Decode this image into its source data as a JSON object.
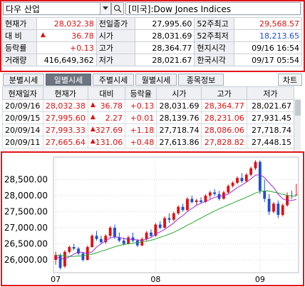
{
  "header": {
    "stock_select": "다우 산업",
    "index_label": "[미국]:Dow Jones Indices"
  },
  "quote": {
    "rows": [
      {
        "l1": "현재가",
        "v1": "28,032.38",
        "l2": "전일종가",
        "v2": "27,995.60",
        "l3": "52주최고",
        "v3": "29,568.57"
      },
      {
        "l1": "대 비",
        "v1": "36.78",
        "l2": "시가",
        "v2": "28,031.69",
        "l3": "52주최저",
        "v3": "18,213.65"
      },
      {
        "l1": "등락률",
        "v1": "+0.13",
        "l2": "고가",
        "v2": "28,364.77",
        "l3": "현지시각",
        "v3": "09/16 16:54"
      },
      {
        "l1": "거래량",
        "v1": "416,649,362",
        "l2": "저가",
        "v2": "28,021.67",
        "l3": "한국시각",
        "v3": "09/17 05:54"
      }
    ]
  },
  "tabs": [
    "분별시세",
    "일별시세",
    "주별시세",
    "월별시세",
    "종목정보"
  ],
  "chart_button": "차트",
  "history": {
    "headers": [
      "현재일자",
      "현재가",
      "대비",
      "등락율",
      "시가",
      "고가",
      "저가"
    ],
    "rows": [
      {
        "date": "20/09/16",
        "close": "28,032.38",
        "chg": "36.78",
        "pct": "+0.13",
        "open": "28,031.69",
        "high": "28,364.77",
        "low": "28,021.67"
      },
      {
        "date": "20/09/15",
        "close": "27,995.60",
        "chg": "2.27",
        "pct": "+0.01",
        "open": "28,139.76",
        "high": "28,231.06",
        "low": "27,931.45"
      },
      {
        "date": "20/09/14",
        "close": "27,993.33",
        "chg": "327.69",
        "pct": "+1.18",
        "open": "27,718.74",
        "high": "28,086.06",
        "low": "27,718.74"
      },
      {
        "date": "20/09/11",
        "close": "27,665.64",
        "chg": "131.06",
        "pct": "+0.48",
        "open": "27,613.86",
        "high": "27,828.82",
        "low": "27,448.15"
      }
    ]
  },
  "colors": {
    "up": "#e01010",
    "down": "#1a4fd8",
    "ma1": "#9a2bd8",
    "ma2": "#2aa830",
    "frame": "#e3141b"
  },
  "chart_data": {
    "type": "candlestick",
    "yticks": [
      "28,500.00",
      "28,000.00",
      "27,500.00",
      "27,000.00",
      "26,500.00",
      "26,000.00"
    ],
    "yvalues": [
      28500,
      28000,
      27500,
      27000,
      26500,
      26000
    ],
    "ylim": [
      25600,
      29200
    ],
    "xticks": [
      "07",
      "08",
      "09"
    ],
    "xtick_index": [
      0,
      22,
      45
    ],
    "candles": [
      [
        26000,
        26250,
        25850,
        26150
      ],
      [
        26150,
        26200,
        25700,
        25750
      ],
      [
        25800,
        26300,
        25750,
        26250
      ],
      [
        26250,
        26450,
        26200,
        26400
      ],
      [
        26400,
        26500,
        26300,
        26350
      ],
      [
        26350,
        26400,
        26150,
        26200
      ],
      [
        26200,
        26250,
        25950,
        26000
      ],
      [
        26000,
        26450,
        25980,
        26400
      ],
      [
        26400,
        26800,
        26380,
        26750
      ],
      [
        26750,
        26900,
        26600,
        26650
      ],
      [
        26650,
        26750,
        26500,
        26550
      ],
      [
        26550,
        26800,
        26500,
        26750
      ],
      [
        26750,
        27050,
        26700,
        27000
      ],
      [
        27000,
        27100,
        26650,
        26700
      ],
      [
        26700,
        26850,
        26550,
        26600
      ],
      [
        26600,
        26700,
        26450,
        26500
      ],
      [
        26500,
        26750,
        26480,
        26700
      ],
      [
        26700,
        26850,
        26550,
        26600
      ],
      [
        26600,
        26650,
        26400,
        26450
      ],
      [
        26450,
        26700,
        26420,
        26650
      ],
      [
        26650,
        26900,
        26600,
        26850
      ],
      [
        26850,
        26950,
        26700,
        26750
      ],
      [
        26750,
        27150,
        26720,
        27100
      ],
      [
        27100,
        27200,
        26950,
        27000
      ],
      [
        27000,
        27350,
        26980,
        27300
      ],
      [
        27300,
        27450,
        27150,
        27250
      ],
      [
        27250,
        27500,
        27200,
        27450
      ],
      [
        27450,
        27700,
        27400,
        27650
      ],
      [
        27650,
        27750,
        27500,
        27550
      ],
      [
        27550,
        27950,
        27520,
        27900
      ],
      [
        27900,
        28000,
        27750,
        27800
      ],
      [
        27800,
        27900,
        27700,
        27850
      ],
      [
        27850,
        27950,
        27750,
        27800
      ],
      [
        27800,
        28050,
        27780,
        28000
      ],
      [
        28000,
        28150,
        27900,
        28100
      ],
      [
        28100,
        28200,
        28000,
        28050
      ],
      [
        28050,
        28150,
        27850,
        27900
      ],
      [
        27900,
        28150,
        27880,
        28100
      ],
      [
        28100,
        28350,
        28050,
        28300
      ],
      [
        28300,
        28450,
        28250,
        28400
      ],
      [
        28400,
        28600,
        28350,
        28550
      ],
      [
        28550,
        28700,
        28400,
        28450
      ],
      [
        28450,
        28700,
        28420,
        28650
      ],
      [
        28650,
        28900,
        28600,
        28850
      ],
      [
        28850,
        29100,
        28800,
        29050
      ],
      [
        29050,
        29100,
        28050,
        28150
      ],
      [
        28150,
        28500,
        27800,
        27900
      ],
      [
        27900,
        28050,
        27400,
        27500
      ],
      [
        27500,
        27800,
        27450,
        27750
      ],
      [
        27750,
        27850,
        27300,
        27400
      ],
      [
        27400,
        27750,
        27350,
        27700
      ],
      [
        27700,
        28100,
        27650,
        28000
      ],
      [
        28000,
        28150,
        27900,
        27995
      ],
      [
        28031,
        28365,
        28021,
        28032
      ]
    ],
    "ma1": [
      26100,
      26050,
      26020,
      26100,
      26180,
      26250,
      26230,
      26200,
      26250,
      26400,
      26500,
      26600,
      26680,
      26720,
      26700,
      26660,
      26640,
      26640,
      26620,
      26600,
      26650,
      26700,
      26800,
      26870,
      26950,
      27050,
      27150,
      27280,
      27380,
      27500,
      27600,
      27700,
      27760,
      27820,
      27880,
      27950,
      27980,
      28000,
      28050,
      28150,
      28250,
      28330,
      28420,
      28520,
      28640,
      28650,
      28560,
      28400,
      28250,
      28050,
      27900,
      27850,
      27850,
      27880
    ],
    "ma2": [
      26150,
      26140,
      26120,
      26110,
      26110,
      26120,
      26130,
      26150,
      26180,
      26220,
      26270,
      26310,
      26360,
      26410,
      26450,
      26480,
      26500,
      26520,
      26540,
      26560,
      26580,
      26610,
      26650,
      26700,
      26750,
      26800,
      26860,
      26930,
      27000,
      27080,
      27150,
      27230,
      27300,
      27380,
      27450,
      27520,
      27590,
      27650,
      27710,
      27770,
      27830,
      27890,
      27950,
      28010,
      28080,
      28130,
      28150,
      28140,
      28110,
      28080,
      28040,
      28010,
      27990,
      27980
    ]
  }
}
